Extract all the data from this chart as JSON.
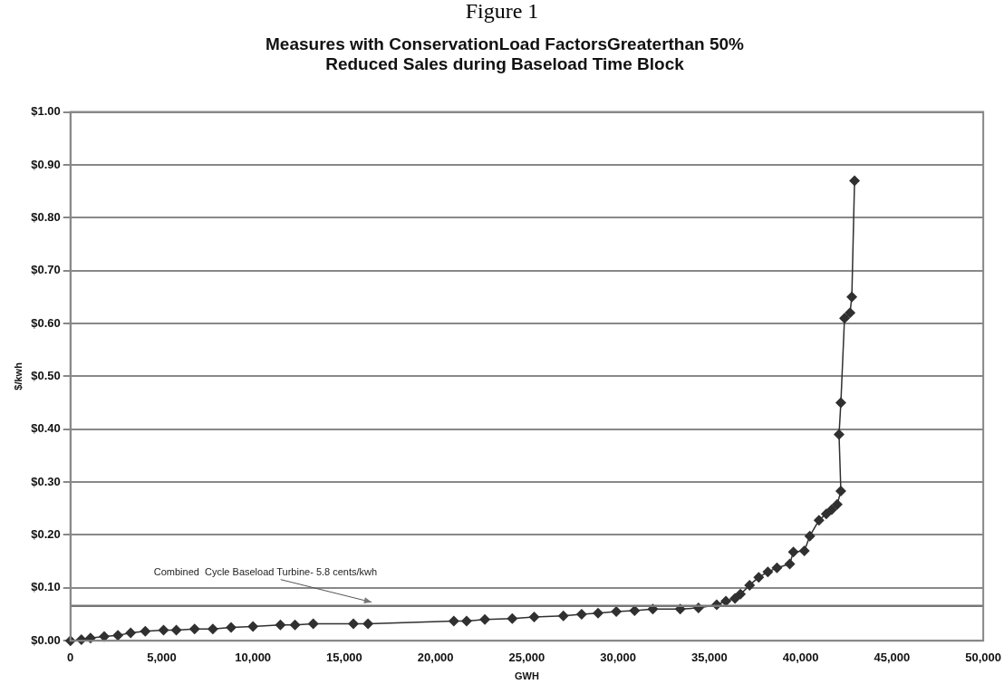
{
  "chart_data": {
    "type": "line",
    "title": "Measures with ConservationLoad FactorsGreaterthan 50%\nReduced Sales during Baseload Time Block",
    "xlabel": "GWH",
    "ylabel": "$/kwh",
    "annotations": [
      "Figure 1"
    ],
    "series": [
      {
        "color": "#303030",
        "x": [
          0,
          600,
          1100,
          1850,
          2600,
          3300,
          4100,
          5100,
          5800,
          6800,
          7800,
          8800,
          10000,
          11500,
          12300,
          13300,
          15500,
          16300,
          21000,
          21700,
          22700,
          24200,
          25400,
          27000,
          28000,
          28900,
          29900,
          30900,
          31900,
          33400,
          34400,
          35400,
          35900,
          36400,
          36700,
          37200,
          37700,
          38200,
          38700,
          39400,
          39600,
          40200,
          40500,
          41000,
          41400,
          41700,
          42000,
          42200,
          42100,
          42200,
          42400,
          42700,
          42800,
          42950
        ],
        "values": [
          0,
          0.002,
          0.005,
          0.008,
          0.01,
          0.015,
          0.018,
          0.02,
          0.02,
          0.022,
          0.022,
          0.025,
          0.027,
          0.03,
          0.03,
          0.032,
          0.032,
          0.032,
          0.037,
          0.037,
          0.04,
          0.042,
          0.045,
          0.047,
          0.05,
          0.052,
          0.055,
          0.057,
          0.06,
          0.06,
          0.062,
          0.068,
          0.075,
          0.08,
          0.088,
          0.105,
          0.12,
          0.13,
          0.138,
          0.145,
          0.168,
          0.17,
          0.198,
          0.228,
          0.24,
          0.248,
          0.258,
          0.283,
          0.39,
          0.45,
          0.61,
          0.62,
          0.65,
          0.87
        ]
      }
    ],
    "marker": "diamond",
    "line_style": "solid",
    "grid": "y",
    "legend": false,
    "xlim": [
      0,
      50000
    ],
    "xticks": [
      0,
      {
        "value": 5000,
        "label": "5,000"
      },
      {
        "value": 10000,
        "label": "10,000"
      },
      {
        "value": 15000,
        "label": "15,000"
      },
      {
        "value": 20000,
        "label": "20,000"
      },
      {
        "value": 25000,
        "label": "25,000"
      },
      {
        "value": 30000,
        "label": "30,000"
      },
      {
        "value": 35000,
        "label": "35,000"
      },
      {
        "value": 40000,
        "label": "40,000"
      },
      {
        "value": 45000,
        "label": "45,000"
      },
      {
        "value": 50000,
        "label": "50,000"
      }
    ],
    "ylim": [
      0,
      1
    ],
    "yticks": [
      {
        "value": 0,
        "label": "$0.00"
      },
      {
        "value": 0.1,
        "label": "$0.10"
      },
      {
        "value": 0.2,
        "label": "$0.20"
      },
      {
        "value": 0.3,
        "label": "$0.30"
      },
      {
        "value": 0.4,
        "label": "$0.40"
      },
      {
        "value": 0.5,
        "label": "$0.50"
      },
      {
        "value": 0.6,
        "label": "$0.60"
      },
      {
        "value": 0.7,
        "label": "$0.70"
      },
      {
        "value": 0.8,
        "label": "$0.80"
      },
      {
        "value": 0.9,
        "label": "$0.90"
      },
      {
        "value": 1,
        "label": "$1.00"
      }
    ],
    "ref_lines": [
      {
        "axis": "y",
        "value": 0.066,
        "label": "Combined  Cycle Baseload Turbine- 5.8 cents/kwh",
        "color": "#777777"
      }
    ]
  }
}
